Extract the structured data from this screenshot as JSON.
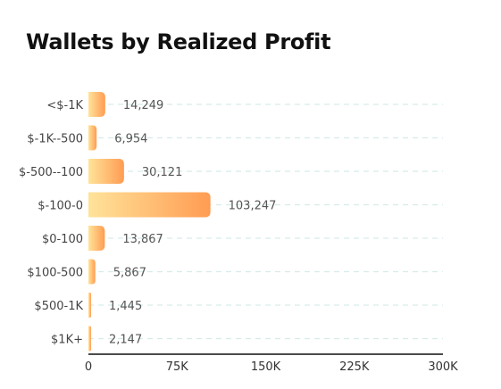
{
  "header": {
    "title": "Wallets by Realized Profit"
  },
  "colors": {
    "bar_start": "#FFE39A",
    "bar_end": "#FF9C52",
    "grid": "#D6ECEA",
    "axis": "#111111"
  },
  "chart_data": {
    "type": "bar",
    "orientation": "horizontal",
    "title": "Wallets by Realized Profit",
    "xlabel": "",
    "ylabel": "",
    "categories": [
      "<$-1K",
      "$-1K--500",
      "$-500--100",
      "$-100-0",
      "$0-100",
      "$100-500",
      "$500-1K",
      "$1K+"
    ],
    "values": [
      14249,
      6954,
      30121,
      103247,
      13867,
      5867,
      1445,
      2147
    ],
    "value_labels": [
      "14,249",
      "6,954",
      "30,121",
      "103,247",
      "13,867",
      "5,867",
      "1,445",
      "2,147"
    ],
    "xlim": [
      0,
      300000
    ],
    "xticks": [
      0,
      75000,
      150000,
      225000,
      300000
    ],
    "xtick_labels": [
      "0",
      "75K",
      "150K",
      "225K",
      "300K"
    ],
    "grid": true,
    "legend": "none"
  }
}
